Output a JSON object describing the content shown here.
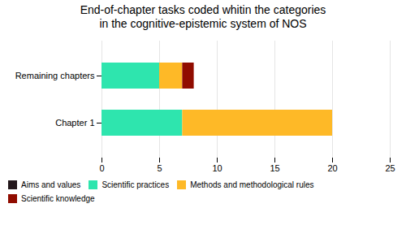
{
  "chart_data": {
    "type": "bar",
    "orientation": "horizontal",
    "stacked": true,
    "title": "End-of-chapter tasks coded whitin the categories\nin the cognitive-epistemic system of NOS",
    "categories": [
      "Remaining chapters",
      "Chapter 1"
    ],
    "series": [
      {
        "name": "Aims and values",
        "values": [
          0,
          0
        ]
      },
      {
        "name": "Scientific practices",
        "values": [
          5,
          7
        ]
      },
      {
        "name": "Methods and methodological rules",
        "values": [
          2,
          13
        ]
      },
      {
        "name": "Scientific knowledge",
        "values": [
          1,
          0
        ]
      }
    ],
    "xlim": [
      0,
      25
    ],
    "xticks": [
      0,
      5,
      10,
      15,
      20,
      25
    ],
    "grid": true,
    "legend": "bottom"
  }
}
